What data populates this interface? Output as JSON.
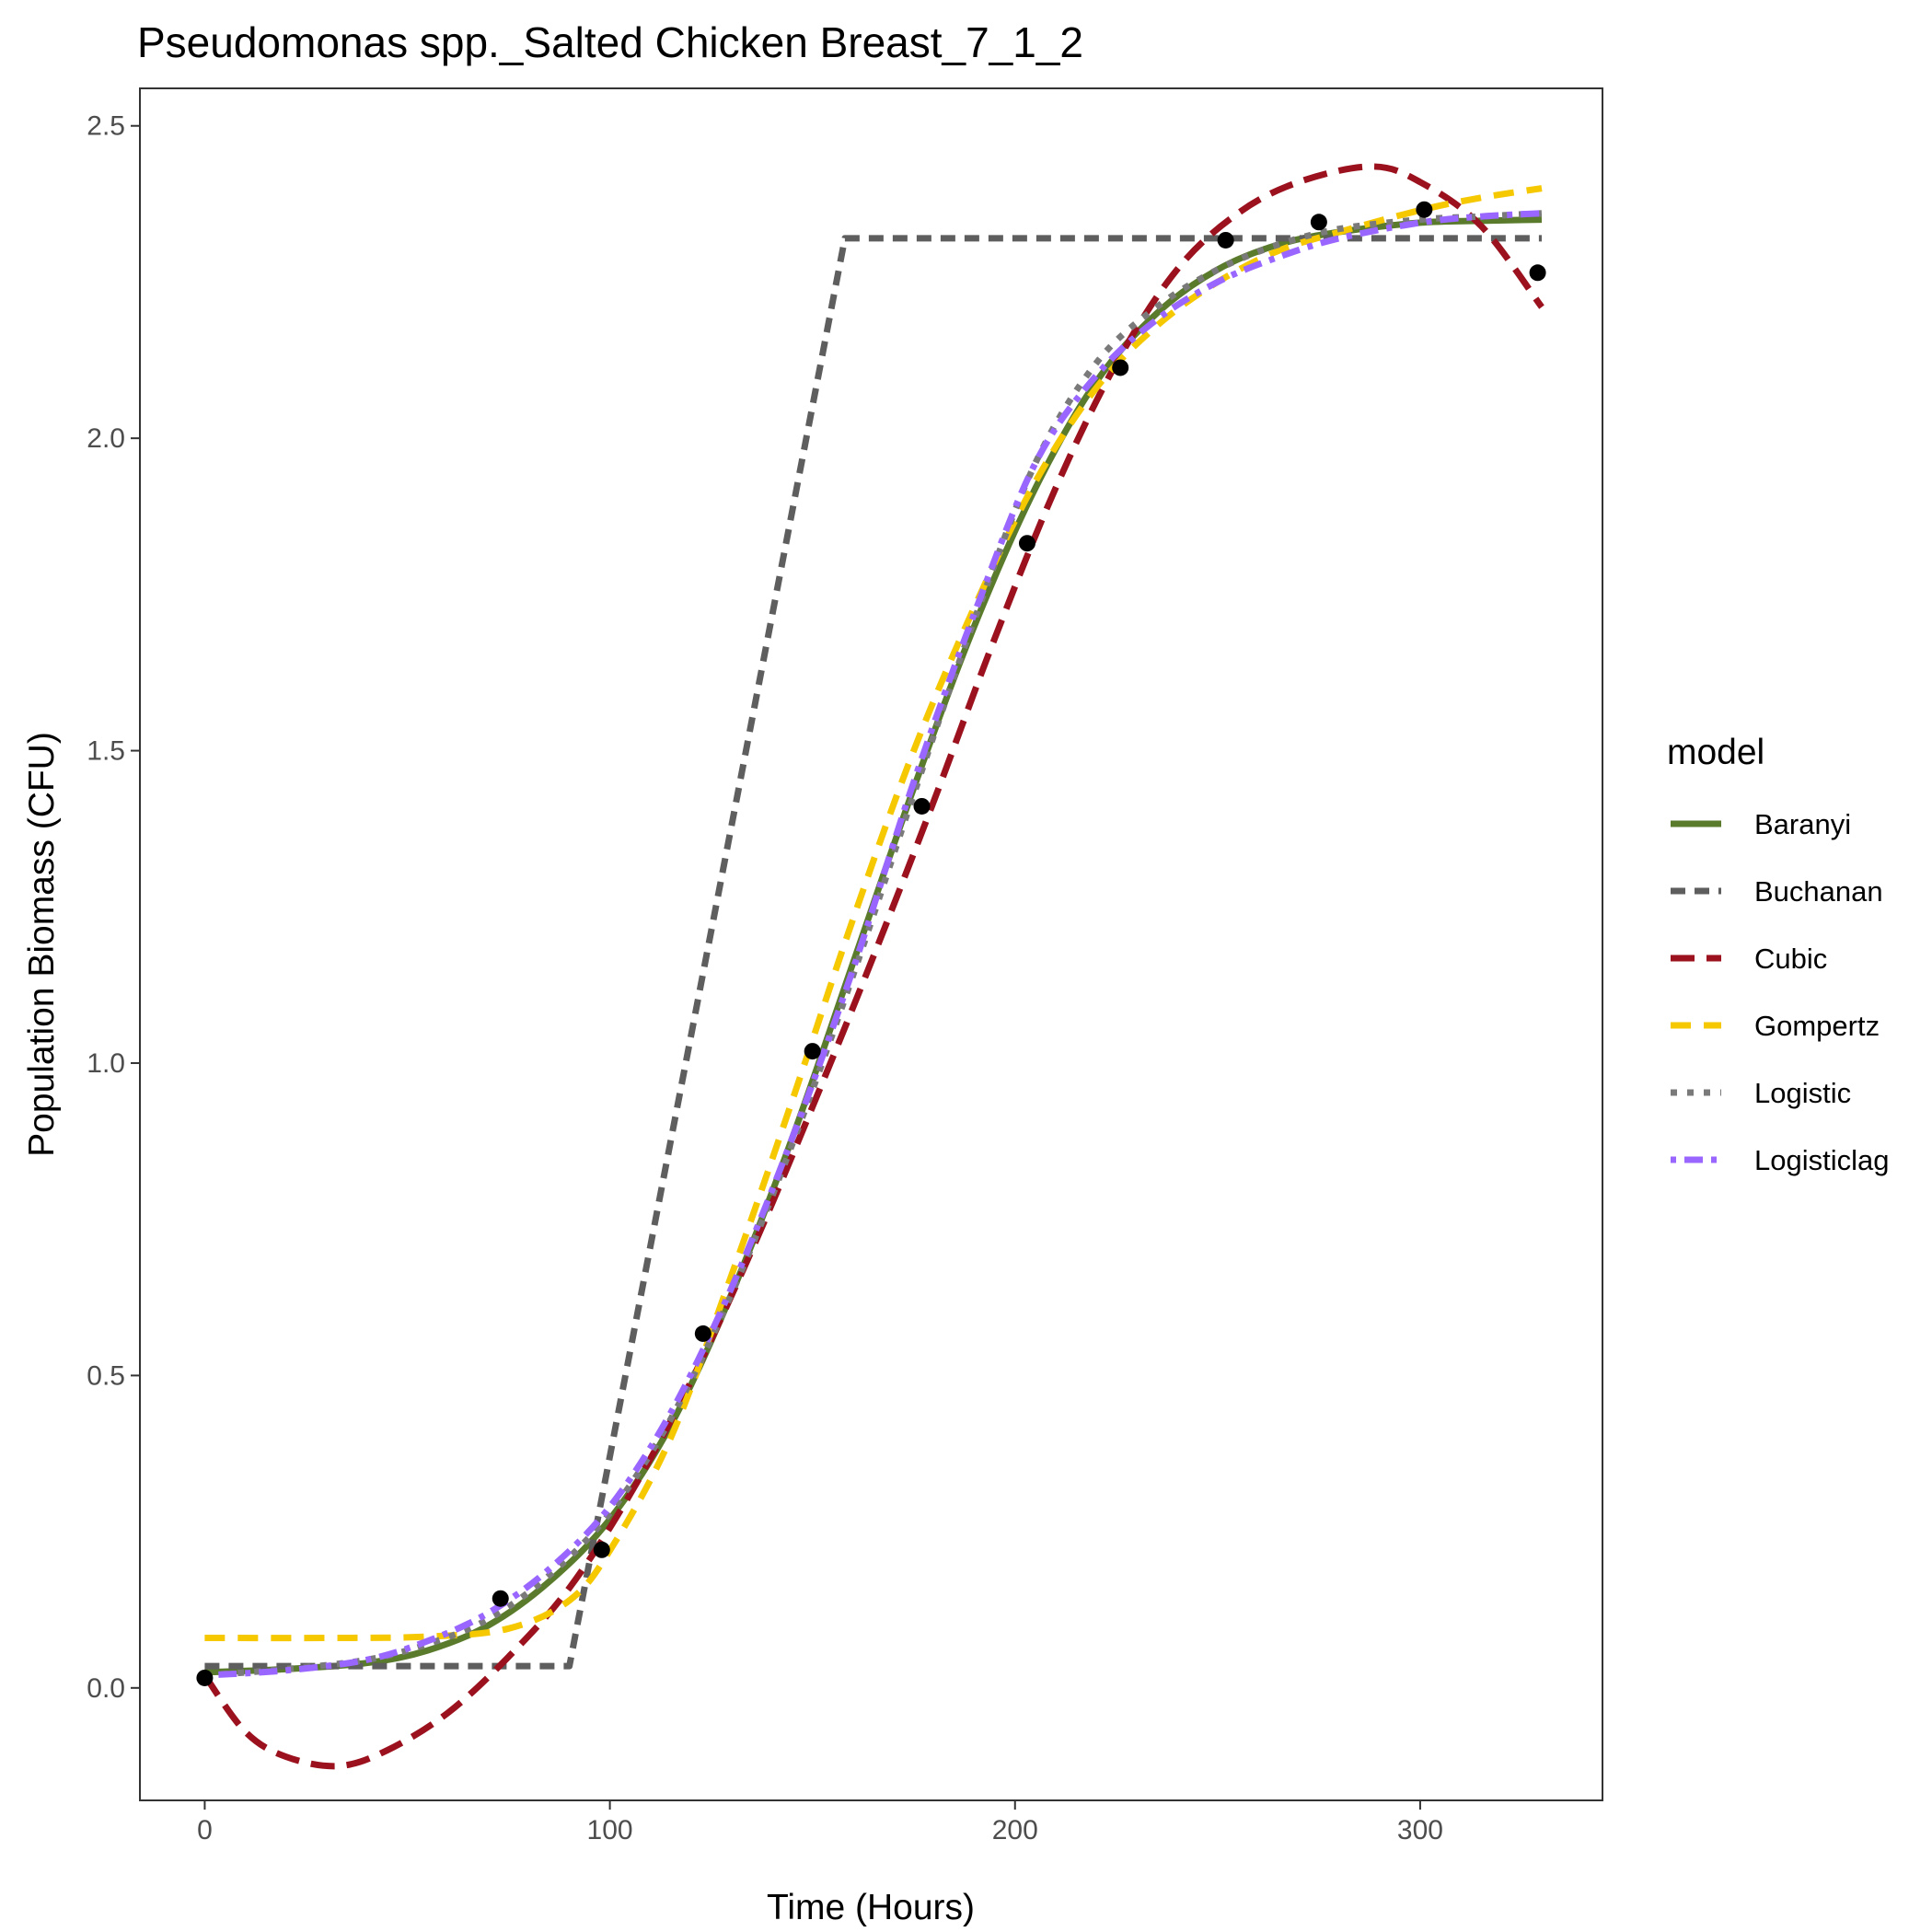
{
  "chart_data": {
    "type": "line",
    "title": "Pseudomonas spp._Salted Chicken Breast_7_1_2",
    "xlabel": "Time (Hours)",
    "ylabel": "Population Biomass (CFU)",
    "xlim": [
      -16,
      345
    ],
    "ylim": [
      -0.18,
      2.56
    ],
    "x_ticks": [
      0,
      100,
      200,
      300
    ],
    "y_ticks": [
      0.0,
      0.5,
      1.0,
      1.5,
      2.0,
      2.5
    ],
    "x_tick_labels": [
      "0",
      "100",
      "200",
      "300"
    ],
    "y_tick_labels": [
      "0.0",
      "0.5",
      "1.0",
      "1.5",
      "2.0",
      "2.5"
    ],
    "grid": false,
    "legend": {
      "title": "model",
      "position": "right"
    },
    "points": [
      {
        "x": 0,
        "y": 0.016
      },
      {
        "x": 73,
        "y": 0.143
      },
      {
        "x": 98,
        "y": 0.221
      },
      {
        "x": 123,
        "y": 0.567
      },
      {
        "x": 150,
        "y": 1.019
      },
      {
        "x": 177,
        "y": 1.411
      },
      {
        "x": 203,
        "y": 1.832
      },
      {
        "x": 226,
        "y": 2.113
      },
      {
        "x": 252,
        "y": 2.317
      },
      {
        "x": 275,
        "y": 2.346
      },
      {
        "x": 301,
        "y": 2.366
      },
      {
        "x": 329,
        "y": 2.265
      }
    ],
    "series": [
      {
        "name": "Baranyi",
        "color": "#5a7a2c",
        "dash": "solid",
        "x": [
          0,
          20,
          40,
          55,
          70,
          85,
          100,
          115,
          130,
          145,
          160,
          175,
          190,
          205,
          220,
          235,
          250,
          265,
          280,
          300,
          315,
          330
        ],
        "y": [
          0.025,
          0.03,
          0.04,
          0.06,
          0.1,
          0.17,
          0.27,
          0.42,
          0.63,
          0.88,
          1.16,
          1.44,
          1.7,
          1.92,
          2.09,
          2.2,
          2.27,
          2.31,
          2.33,
          2.345,
          2.348,
          2.35
        ]
      },
      {
        "name": "Buchanan",
        "color": "#5e5e5e",
        "dash": "dash",
        "x": [
          0,
          90,
          158,
          330
        ],
        "y": [
          0.035,
          0.035,
          2.32,
          2.32
        ]
      },
      {
        "name": "Cubic",
        "color": "#9b111e",
        "dash": "longdash",
        "x": [
          0,
          10,
          20,
          33,
          45,
          60,
          75,
          90,
          105,
          120,
          135,
          150,
          165,
          180,
          195,
          210,
          225,
          240,
          255,
          270,
          288,
          300,
          315,
          330
        ],
        "y": [
          0.02,
          -0.07,
          -0.11,
          -0.125,
          -0.1,
          -0.04,
          0.05,
          0.16,
          0.31,
          0.49,
          0.7,
          0.93,
          1.17,
          1.42,
          1.68,
          1.92,
          2.12,
          2.27,
          2.36,
          2.41,
          2.435,
          2.41,
          2.34,
          2.21
        ]
      },
      {
        "name": "Gompertz",
        "color": "#f5c800",
        "dash": "dash2",
        "x": [
          0,
          30,
          55,
          75,
          90,
          100,
          115,
          130,
          145,
          160,
          175,
          190,
          205,
          220,
          235,
          250,
          265,
          280,
          300,
          315,
          330
        ],
        "y": [
          0.08,
          0.08,
          0.082,
          0.095,
          0.14,
          0.22,
          0.4,
          0.66,
          0.94,
          1.23,
          1.5,
          1.73,
          1.93,
          2.08,
          2.18,
          2.25,
          2.3,
          2.33,
          2.365,
          2.385,
          2.4
        ]
      },
      {
        "name": "Logistic",
        "color": "#7a7a7a",
        "dash": "dotted",
        "x": [
          0,
          20,
          40,
          55,
          70,
          85,
          100,
          115,
          130,
          145,
          160,
          175,
          190,
          205,
          220,
          235,
          250,
          265,
          280,
          300,
          315,
          330
        ],
        "y": [
          0.02,
          0.03,
          0.045,
          0.07,
          0.11,
          0.18,
          0.28,
          0.43,
          0.63,
          0.87,
          1.14,
          1.43,
          1.71,
          1.96,
          2.12,
          2.21,
          2.27,
          2.31,
          2.335,
          2.35,
          2.355,
          2.36
        ]
      },
      {
        "name": "Logisticlag",
        "color": "#9966ff",
        "dash": "dotdash",
        "x": [
          0,
          20,
          40,
          55,
          70,
          85,
          100,
          115,
          130,
          145,
          160,
          175,
          190,
          205,
          220,
          235,
          250,
          265,
          280,
          300,
          315,
          330
        ],
        "y": [
          0.02,
          0.028,
          0.045,
          0.075,
          0.12,
          0.19,
          0.29,
          0.44,
          0.64,
          0.88,
          1.15,
          1.45,
          1.72,
          1.96,
          2.1,
          2.19,
          2.25,
          2.29,
          2.32,
          2.345,
          2.355,
          2.36
        ]
      }
    ]
  }
}
